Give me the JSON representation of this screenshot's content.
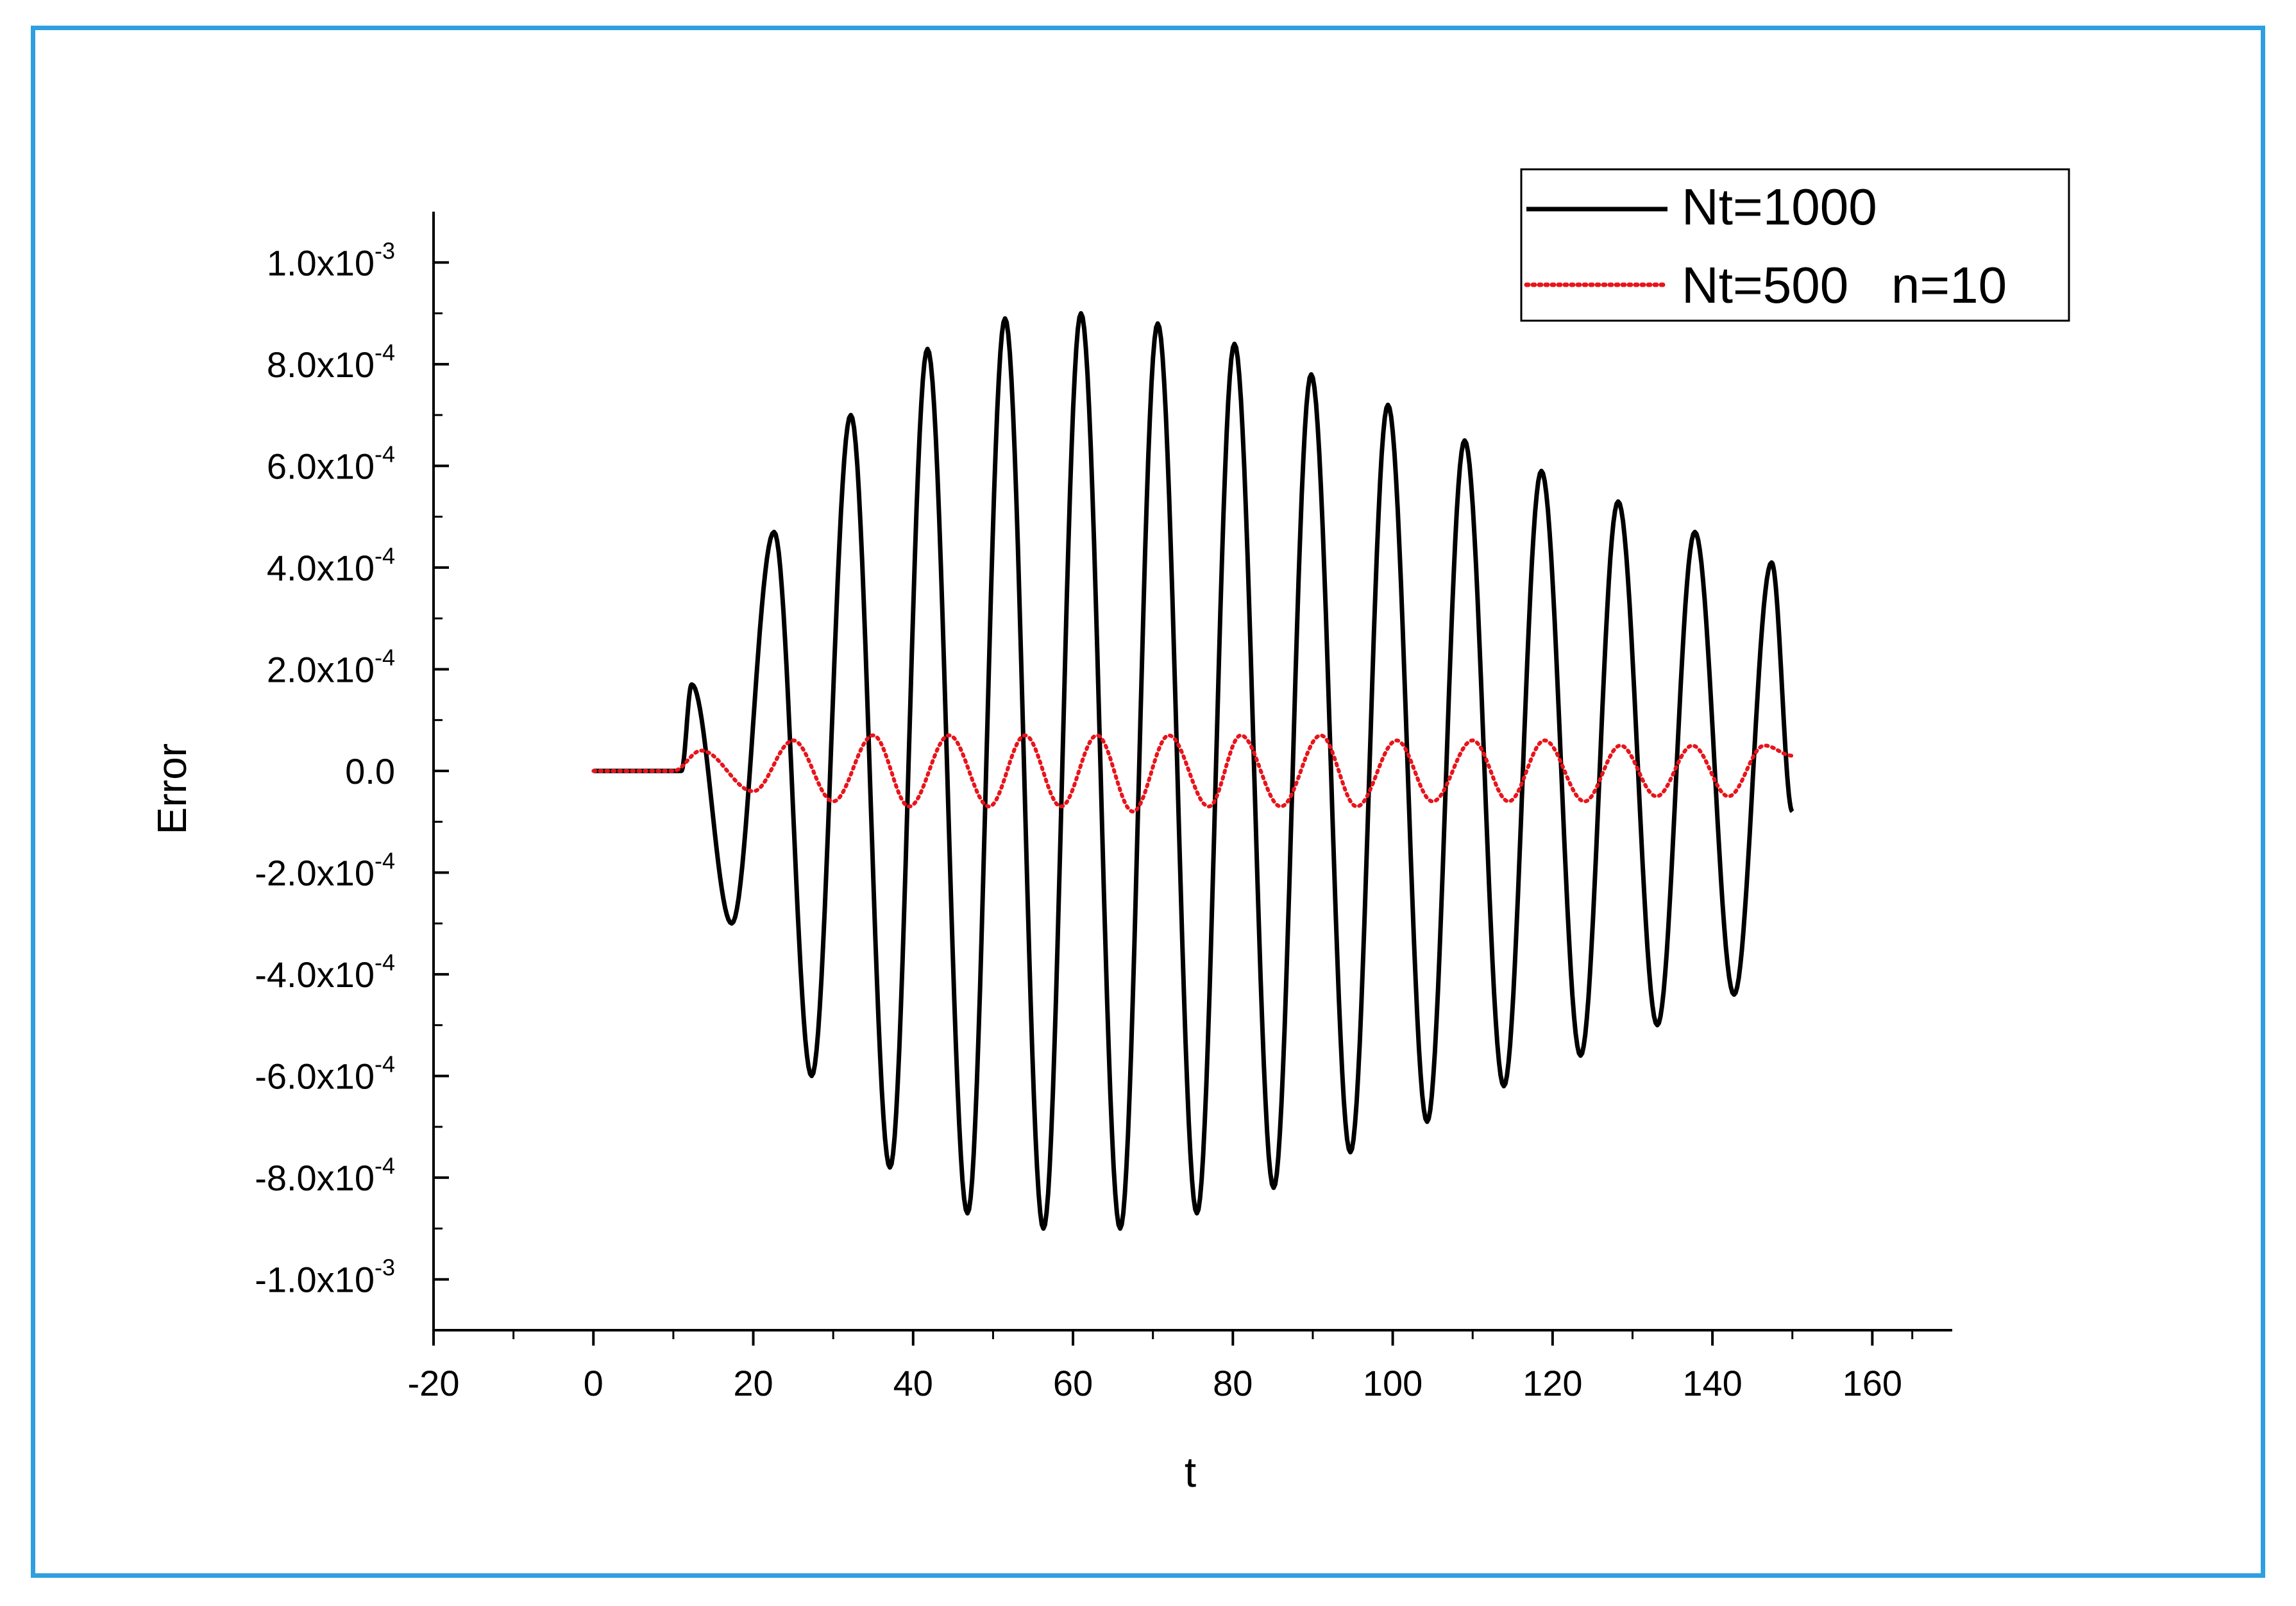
{
  "chart_data": {
    "type": "line",
    "title": "",
    "xlabel": "t",
    "ylabel": "Error",
    "xlim": [
      -20,
      170
    ],
    "ylim": [
      -0.0011,
      0.0011
    ],
    "grid": false,
    "legend_position": "top-right",
    "x_ticks": [
      {
        "value": -20,
        "label": "-20"
      },
      {
        "value": 0,
        "label": "0"
      },
      {
        "value": 20,
        "label": "20"
      },
      {
        "value": 40,
        "label": "40"
      },
      {
        "value": 60,
        "label": "60"
      },
      {
        "value": 80,
        "label": "80"
      },
      {
        "value": 100,
        "label": "100"
      },
      {
        "value": 120,
        "label": "120"
      },
      {
        "value": 140,
        "label": "140"
      },
      {
        "value": 160,
        "label": "160"
      }
    ],
    "y_ticks": [
      {
        "value": 0.001,
        "mantissa": "1.0x10",
        "exp": "-3"
      },
      {
        "value": 0.0008,
        "mantissa": "8.0x10",
        "exp": "-4"
      },
      {
        "value": 0.0006,
        "mantissa": "6.0x10",
        "exp": "-4"
      },
      {
        "value": 0.0004,
        "mantissa": "4.0x10",
        "exp": "-4"
      },
      {
        "value": 0.0002,
        "mantissa": "2.0x10",
        "exp": "-4"
      },
      {
        "value": 0.0,
        "mantissa": "0.0",
        "exp": ""
      },
      {
        "value": -0.0002,
        "mantissa": "-2.0x10",
        "exp": "-4"
      },
      {
        "value": -0.0004,
        "mantissa": "-4.0x10",
        "exp": "-4"
      },
      {
        "value": -0.0006,
        "mantissa": "-6.0x10",
        "exp": "-4"
      },
      {
        "value": -0.0008,
        "mantissa": "-8.0x10",
        "exp": "-4"
      },
      {
        "value": -0.001,
        "mantissa": "-1.0x10",
        "exp": "-3"
      }
    ],
    "series": [
      {
        "name": "Nt=1000",
        "color": "#000000",
        "style": "solid",
        "extrema": [
          [
            0,
            0
          ],
          [
            11,
            0
          ],
          [
            12.3,
            0.00017
          ],
          [
            17.3,
            -0.0003
          ],
          [
            22.6,
            0.00047
          ],
          [
            27.3,
            -0.0006
          ],
          [
            32.2,
            0.0007
          ],
          [
            37.1,
            -0.00078
          ],
          [
            41.8,
            0.00083
          ],
          [
            46.8,
            -0.00087
          ],
          [
            51.5,
            0.00089
          ],
          [
            56.3,
            -0.0009
          ],
          [
            61.0,
            0.0009
          ],
          [
            65.9,
            -0.0009
          ],
          [
            70.6,
            0.00088
          ],
          [
            75.5,
            -0.00087
          ],
          [
            80.2,
            0.00084
          ],
          [
            85.1,
            -0.00082
          ],
          [
            89.8,
            0.00078
          ],
          [
            94.7,
            -0.00075
          ],
          [
            99.4,
            0.00072
          ],
          [
            104.3,
            -0.00069
          ],
          [
            109.0,
            0.00065
          ],
          [
            113.9,
            -0.00062
          ],
          [
            118.6,
            0.00059
          ],
          [
            123.5,
            -0.00056
          ],
          [
            128.2,
            0.00053
          ],
          [
            133.1,
            -0.0005
          ],
          [
            137.8,
            0.00047
          ],
          [
            142.7,
            -0.00044
          ],
          [
            147.4,
            0.00041
          ],
          [
            150,
            -8e-05
          ]
        ]
      },
      {
        "name": "Nt=500   n=10",
        "color": "#e8141b",
        "style": "dotted",
        "extrema": [
          [
            0,
            0
          ],
          [
            10,
            0
          ],
          [
            13.5,
            4e-05
          ],
          [
            20,
            -4e-05
          ],
          [
            25,
            6e-05
          ],
          [
            30,
            -6e-05
          ],
          [
            35,
            7e-05
          ],
          [
            39.5,
            -7e-05
          ],
          [
            44.5,
            7e-05
          ],
          [
            49.5,
            -7e-05
          ],
          [
            54,
            7e-05
          ],
          [
            58.5,
            -7e-05
          ],
          [
            63,
            7e-05
          ],
          [
            67.5,
            -8e-05
          ],
          [
            72,
            7e-05
          ],
          [
            77,
            -7e-05
          ],
          [
            81,
            7e-05
          ],
          [
            86,
            -7e-05
          ],
          [
            91,
            7e-05
          ],
          [
            95.5,
            -7e-05
          ],
          [
            100.5,
            6e-05
          ],
          [
            105,
            -6e-05
          ],
          [
            110,
            6e-05
          ],
          [
            114.5,
            -6e-05
          ],
          [
            119,
            6e-05
          ],
          [
            124,
            -6e-05
          ],
          [
            128.5,
            5e-05
          ],
          [
            133,
            -5e-05
          ],
          [
            137.5,
            5e-05
          ],
          [
            142,
            -5e-05
          ],
          [
            146.5,
            5e-05
          ],
          [
            150,
            3e-05
          ]
        ]
      }
    ]
  }
}
